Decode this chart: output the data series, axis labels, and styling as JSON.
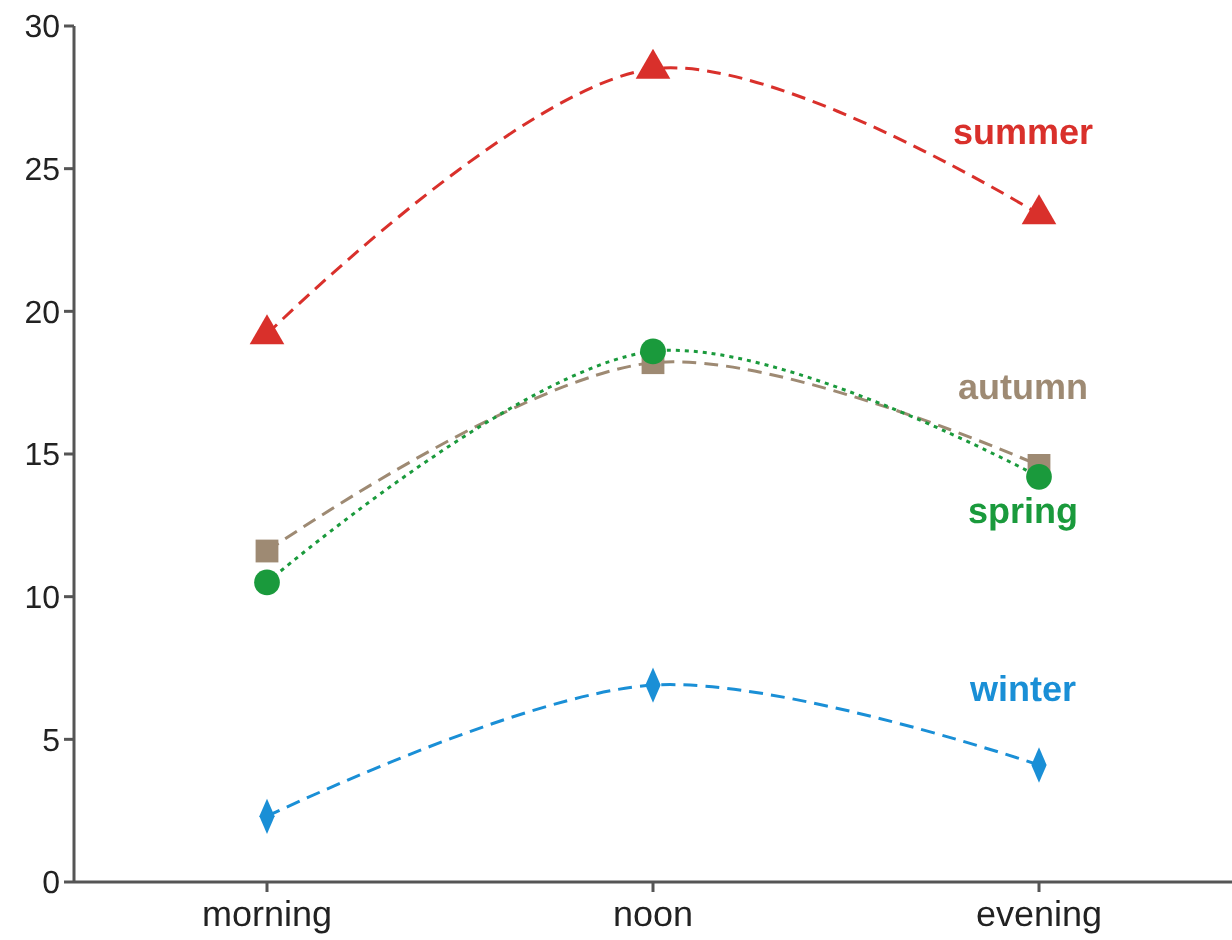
{
  "chart_data": {
    "type": "line",
    "categories": [
      "morning",
      "noon",
      "evening"
    ],
    "ylim": [
      0,
      30
    ],
    "yticks": [
      0,
      5,
      10,
      15,
      20,
      25,
      30
    ],
    "grid": false,
    "series": [
      {
        "name": "summer",
        "color": "#d9302b",
        "values": [
          19.2,
          28.5,
          23.4
        ],
        "marker": "triangle",
        "line_style": "dashed"
      },
      {
        "name": "autumn",
        "color": "#9e8a73",
        "values": [
          11.6,
          18.2,
          14.6
        ],
        "marker": "square",
        "line_style": "dashed"
      },
      {
        "name": "spring",
        "color": "#1a9a3c",
        "values": [
          10.5,
          18.6,
          14.2
        ],
        "marker": "circle",
        "line_style": "dotted"
      },
      {
        "name": "winter",
        "color": "#1a8fd6",
        "values": [
          2.3,
          6.9,
          4.1
        ],
        "marker": "diamond",
        "line_style": "dashed"
      }
    ]
  }
}
